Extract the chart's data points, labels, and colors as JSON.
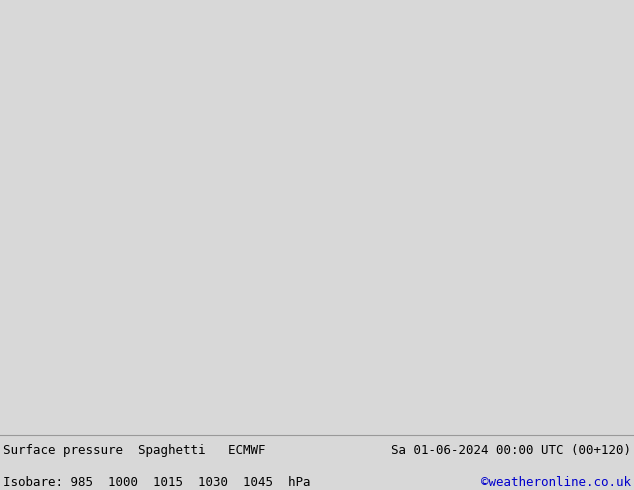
{
  "title_left": "Surface pressure  Spaghetti   ECMWF",
  "title_right": "Sa 01-06-2024 00:00 UTC (00+120)",
  "isobare_label": "Isobare: 985  1000  1015  1030  1045  hPa",
  "credit": "©weatheronline.co.uk",
  "land_color": "#c8f0a0",
  "ocean_color": "#f0f0f0",
  "coast_color": "#888888",
  "border_color": "#aaaaaa",
  "footer_bg": "#d8d8d8",
  "footer_text_color": "#000000",
  "credit_color": "#0000cc",
  "font_size_footer": 9.0,
  "fig_width": 6.34,
  "fig_height": 4.9,
  "dpi": 100,
  "map_extent": [
    -120,
    0,
    -40,
    35
  ],
  "spaghetti_colors": [
    "#ff00ff",
    "#00ccff",
    "#ffcc00",
    "#ff6600",
    "#8800ff",
    "#ff0000",
    "#00aa00",
    "#888888",
    "#ff66ff",
    "#00ffcc",
    "#ff8844",
    "#4488ff",
    "#aaaa00",
    "#00aaaa",
    "#aa0000",
    "#0000ff",
    "#aa00aa",
    "#00ff88",
    "#ffaa00",
    "#aaaaaa"
  ],
  "gray_contour_color": "#555555",
  "n_ensemble": 51,
  "seed": 42
}
